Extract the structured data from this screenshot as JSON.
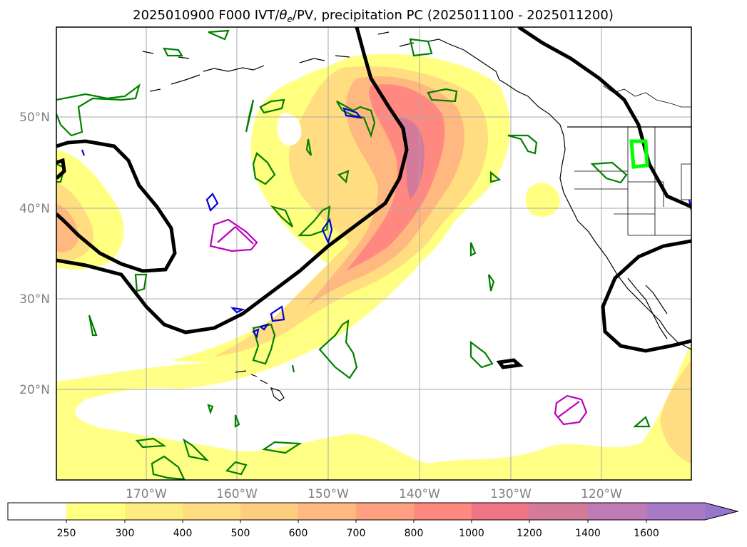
{
  "title": {
    "prefix": "2025010900 F000 IVT/",
    "theta": "θ",
    "theta_sub": "e",
    "suffix": "/PV, precipitation PC (2025011100 - 2025011200)"
  },
  "map": {
    "lat_labels": [
      "50°N",
      "40°N",
      "30°N",
      "20°N"
    ],
    "lon_labels": [
      "170°W",
      "160°W",
      "150°W",
      "140°W",
      "130°W",
      "120°W"
    ],
    "grid": true
  },
  "colorbar": {
    "levels": [
      "250",
      "300",
      "400",
      "500",
      "600",
      "700",
      "800",
      "1000",
      "1200",
      "1400",
      "1600"
    ],
    "colors": [
      "#ffffff",
      "#ffff80",
      "#ffec80",
      "#ffdd80",
      "#ffcd80",
      "#ffb880",
      "#ffa080",
      "#ff8880",
      "#ee7585",
      "#d47a9a",
      "#c07ab5",
      "#a87ac8",
      "#9876cc"
    ],
    "extend": "max"
  },
  "colors": {
    "ivt_fill_1": "#ffff80",
    "ivt_fill_2": "#ffdd80",
    "ivt_fill_3": "#ffb880",
    "ivt_fill_4": "#ff8880",
    "ivt_fill_5": "#d47a9a",
    "theta_contour": "#008000",
    "pv_contour": "#0000dd",
    "precip_contour": "#bb00bb",
    "highlight_box": "#00ff00",
    "jet_contour": "#000000"
  }
}
